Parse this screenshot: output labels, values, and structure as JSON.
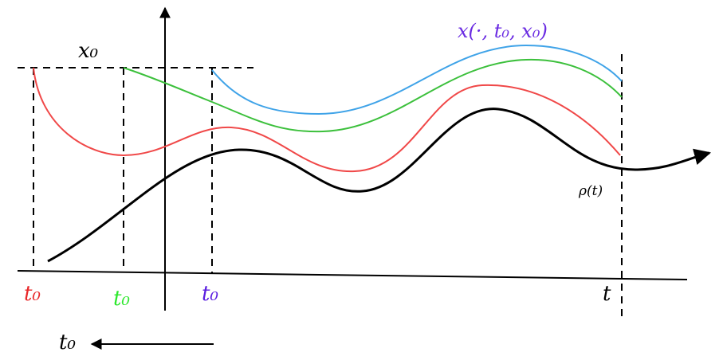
{
  "labels": {
    "x0": "x₀",
    "trajectory": "x(·, t₀, x₀)",
    "rho": "ρ(t)",
    "t0_red": "t₀",
    "t0_green": "t₀",
    "t0_blue": "t₀",
    "t": "t",
    "t0_arrow": "t₀"
  }
}
